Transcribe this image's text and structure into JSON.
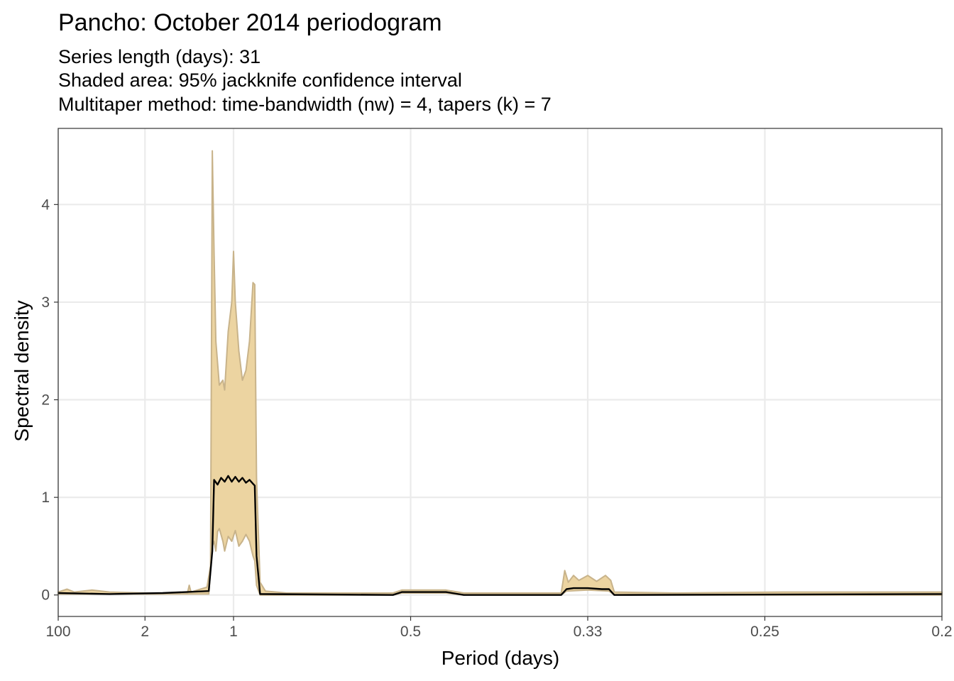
{
  "chart_data": {
    "type": "area",
    "title": "Pancho: October 2014 periodogram",
    "subtitle_lines": [
      "Series length (days): 31",
      "Shaded area: 95% jackknife confidence interval",
      "Multitaper method: time-bandwidth (nw) = 4, tapers (k) = 7"
    ],
    "xlabel": "Period (days)",
    "ylabel": "Spectral density",
    "x_scale": "reciprocal (frequency = 1/period)",
    "x_ticks": [
      {
        "label": "100",
        "frequency": 0.01
      },
      {
        "label": "2",
        "frequency": 0.5
      },
      {
        "label": "1",
        "frequency": 1.0
      },
      {
        "label": "0.5",
        "frequency": 2.0
      },
      {
        "label": "0.33",
        "frequency": 3.0
      },
      {
        "label": "0.25",
        "frequency": 4.0
      },
      {
        "label": "0.2",
        "frequency": 5.0
      }
    ],
    "xlim_frequency": [
      0.01,
      5.0
    ],
    "y_ticks": [
      0,
      1,
      2,
      3,
      4
    ],
    "ylim": [
      -0.22,
      4.78
    ],
    "grid": true,
    "legend": "none",
    "colors": {
      "band_fill": "#ecd4a1",
      "band_edge": "#c8b38a",
      "estimate_line": "#000000",
      "grid": "#ebebeb",
      "panel_border": "#333333"
    },
    "series": [
      {
        "role": "estimate",
        "points": [
          [
            0.01,
            0.02
          ],
          [
            0.3,
            0.01
          ],
          [
            0.6,
            0.02
          ],
          [
            0.86,
            0.04
          ],
          [
            0.88,
            0.45
          ],
          [
            0.89,
            1.18
          ],
          [
            0.91,
            1.13
          ],
          [
            0.93,
            1.2
          ],
          [
            0.95,
            1.16
          ],
          [
            0.97,
            1.22
          ],
          [
            0.99,
            1.16
          ],
          [
            1.01,
            1.21
          ],
          [
            1.03,
            1.16
          ],
          [
            1.05,
            1.2
          ],
          [
            1.07,
            1.15
          ],
          [
            1.09,
            1.18
          ],
          [
            1.11,
            1.14
          ],
          [
            1.12,
            1.12
          ],
          [
            1.13,
            0.4
          ],
          [
            1.15,
            0.01
          ],
          [
            1.9,
            0.0
          ],
          [
            1.95,
            0.03
          ],
          [
            2.2,
            0.03
          ],
          [
            2.3,
            0.0
          ],
          [
            2.85,
            0.0
          ],
          [
            2.88,
            0.06
          ],
          [
            2.92,
            0.07
          ],
          [
            3.0,
            0.07
          ],
          [
            3.08,
            0.06
          ],
          [
            3.12,
            0.06
          ],
          [
            3.15,
            0.0
          ],
          [
            5.0,
            0.01
          ]
        ]
      },
      {
        "role": "ci_upper",
        "points": [
          [
            0.01,
            0.03
          ],
          [
            0.06,
            0.06
          ],
          [
            0.1,
            0.03
          ],
          [
            0.2,
            0.05
          ],
          [
            0.3,
            0.03
          ],
          [
            0.5,
            0.02
          ],
          [
            0.74,
            0.02
          ],
          [
            0.75,
            0.1
          ],
          [
            0.76,
            0.03
          ],
          [
            0.85,
            0.08
          ],
          [
            0.87,
            0.3
          ],
          [
            0.88,
            4.55
          ],
          [
            0.89,
            3.5
          ],
          [
            0.9,
            2.6
          ],
          [
            0.92,
            2.15
          ],
          [
            0.94,
            2.2
          ],
          [
            0.95,
            2.1
          ],
          [
            0.97,
            2.7
          ],
          [
            0.99,
            3.0
          ],
          [
            1.0,
            3.52
          ],
          [
            1.01,
            3.0
          ],
          [
            1.03,
            2.5
          ],
          [
            1.05,
            2.2
          ],
          [
            1.07,
            2.3
          ],
          [
            1.09,
            2.6
          ],
          [
            1.11,
            3.2
          ],
          [
            1.12,
            3.18
          ],
          [
            1.13,
            1.2
          ],
          [
            1.15,
            0.13
          ],
          [
            1.18,
            0.04
          ],
          [
            1.3,
            0.02
          ],
          [
            1.9,
            0.02
          ],
          [
            1.95,
            0.05
          ],
          [
            2.2,
            0.05
          ],
          [
            2.3,
            0.02
          ],
          [
            2.85,
            0.02
          ],
          [
            2.87,
            0.25
          ],
          [
            2.89,
            0.13
          ],
          [
            2.92,
            0.2
          ],
          [
            2.95,
            0.15
          ],
          [
            3.0,
            0.2
          ],
          [
            3.05,
            0.14
          ],
          [
            3.1,
            0.2
          ],
          [
            3.13,
            0.15
          ],
          [
            3.15,
            0.03
          ],
          [
            3.5,
            0.02
          ],
          [
            4.1,
            0.03
          ],
          [
            5.0,
            0.03
          ]
        ]
      },
      {
        "role": "ci_lower",
        "points": [
          [
            0.01,
            0.01
          ],
          [
            0.86,
            0.01
          ],
          [
            0.87,
            0.25
          ],
          [
            0.88,
            0.5
          ],
          [
            0.89,
            0.55
          ],
          [
            0.9,
            0.45
          ],
          [
            0.91,
            0.65
          ],
          [
            0.92,
            0.68
          ],
          [
            0.94,
            0.55
          ],
          [
            0.95,
            0.45
          ],
          [
            0.97,
            0.6
          ],
          [
            0.99,
            0.55
          ],
          [
            1.01,
            0.66
          ],
          [
            1.03,
            0.5
          ],
          [
            1.05,
            0.55
          ],
          [
            1.07,
            0.62
          ],
          [
            1.09,
            0.55
          ],
          [
            1.11,
            0.4
          ],
          [
            1.12,
            0.35
          ],
          [
            1.13,
            0.1
          ],
          [
            1.15,
            0.0
          ],
          [
            1.9,
            0.0
          ],
          [
            1.95,
            0.02
          ],
          [
            2.2,
            0.02
          ],
          [
            2.3,
            0.0
          ],
          [
            2.85,
            0.0
          ],
          [
            2.88,
            0.04
          ],
          [
            3.0,
            0.05
          ],
          [
            3.12,
            0.04
          ],
          [
            3.15,
            0.0
          ],
          [
            5.0,
            0.0
          ]
        ]
      }
    ]
  }
}
